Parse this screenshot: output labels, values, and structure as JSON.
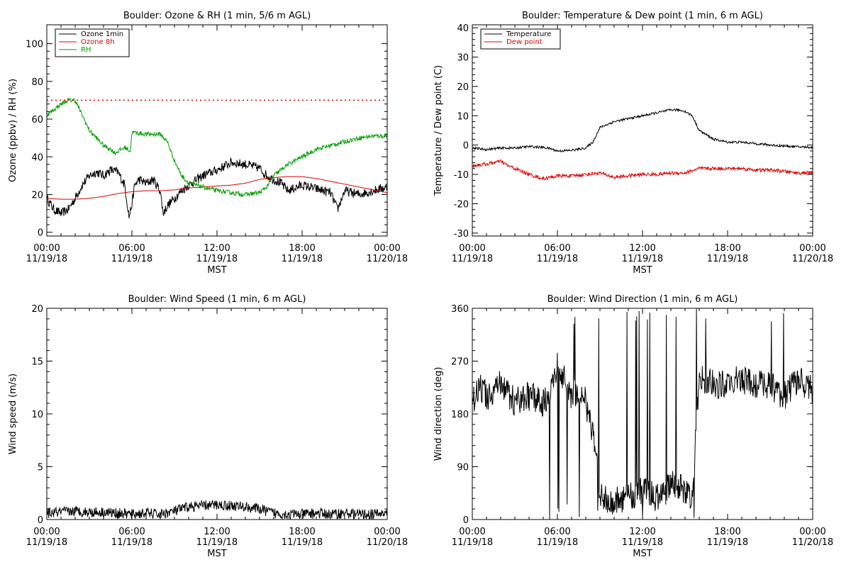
{
  "x_axis": {
    "ticks": [
      {
        "top": "00:00",
        "bottom": "11/19/18"
      },
      {
        "top": "06:00",
        "bottom": "11/19/18"
      },
      {
        "top": "12:00",
        "bottom": "11/19/18"
      },
      {
        "top": "18:00",
        "bottom": "11/19/18"
      },
      {
        "top": "00:00",
        "bottom": "11/20/18"
      }
    ],
    "label": "MST"
  },
  "chart_data": [
    {
      "type": "line",
      "title": "Boulder: Ozone & RH (1 min, 5/6 m AGL)",
      "ylabel": "Ozone (ppbv) / RH (%)",
      "xlabel": "MST",
      "x_range_hours": [
        0,
        24
      ],
      "ylim": [
        -2,
        110
      ],
      "yticks": [
        0,
        20,
        40,
        60,
        80,
        100
      ],
      "legend_position": "top-left",
      "reference_line": {
        "y": 70,
        "style": "dotted",
        "color": "#e00000"
      },
      "series": [
        {
          "name": "Ozone 1min",
          "color": "#000000",
          "noise": 2.5,
          "x": [
            0,
            0.5,
            1,
            1.5,
            2,
            2.5,
            3,
            3.5,
            4,
            4.5,
            5,
            5.5,
            5.8,
            6,
            6.2,
            6.5,
            7,
            7.5,
            8,
            8.2,
            8.5,
            9,
            9.5,
            10,
            11,
            12,
            13,
            14,
            14.5,
            15,
            15.5,
            16,
            16.5,
            17,
            18,
            19,
            20,
            20.5,
            21,
            22,
            23,
            24
          ],
          "y": [
            18,
            12,
            10,
            12,
            18,
            25,
            30,
            32,
            30,
            33,
            32,
            25,
            8,
            15,
            25,
            28,
            26,
            28,
            22,
            10,
            14,
            18,
            22,
            25,
            30,
            33,
            37,
            36,
            35,
            34,
            30,
            28,
            26,
            22,
            25,
            23,
            21,
            12,
            22,
            20,
            22,
            24
          ]
        },
        {
          "name": "Ozone 8h",
          "color": "#e00000",
          "noise": 0,
          "x": [
            0,
            1,
            2,
            3,
            4,
            5,
            6,
            7,
            8,
            9,
            10,
            11,
            12,
            13,
            14,
            15,
            16,
            17,
            18,
            19,
            20,
            21,
            22,
            23,
            24
          ],
          "y": [
            18,
            17.5,
            17.5,
            18,
            19,
            20.5,
            21.5,
            22,
            22,
            22.5,
            23.5,
            24,
            24.5,
            25,
            26,
            28,
            29,
            29.5,
            29.5,
            28.5,
            27,
            25.5,
            24,
            22.5,
            21
          ]
        },
        {
          "name": "RH",
          "color": "#00a000",
          "noise": 1.2,
          "x": [
            0,
            0.5,
            1,
            1.5,
            2,
            2.5,
            3,
            3.5,
            4,
            4.5,
            4.8,
            5.5,
            5.9,
            6,
            7,
            8,
            8.5,
            9,
            9.5,
            10,
            11,
            12,
            13,
            14,
            15,
            15.5,
            16,
            17,
            18,
            19,
            20,
            21,
            22,
            23,
            24
          ],
          "y": [
            62,
            65,
            68,
            70,
            70,
            62,
            54,
            50,
            46,
            44,
            42,
            45,
            43,
            53,
            52,
            52,
            48,
            38,
            30,
            26,
            24,
            22,
            21,
            20,
            21,
            24,
            30,
            36,
            40,
            44,
            46,
            48,
            50,
            51,
            51
          ]
        }
      ]
    },
    {
      "type": "line",
      "title": "Boulder: Temperature & Dew point (1 min, 6 m AGL)",
      "ylabel": "Temperature / Dew point (C)",
      "xlabel": "MST",
      "x_range_hours": [
        0,
        24
      ],
      "ylim": [
        -31,
        41
      ],
      "yticks": [
        -30,
        -20,
        -10,
        0,
        10,
        20,
        30,
        40
      ],
      "legend_position": "top-left",
      "series": [
        {
          "name": "Temperature",
          "color": "#000000",
          "noise": 0.4,
          "x": [
            0,
            1,
            2,
            3,
            4,
            5,
            5.5,
            6,
            7,
            8,
            8.5,
            9,
            10,
            11,
            12,
            13,
            14,
            14.5,
            15,
            15.5,
            16,
            17,
            18,
            19,
            20,
            21,
            22,
            23,
            24
          ],
          "y": [
            -1,
            -1.5,
            -1,
            -1,
            -0.5,
            -0.8,
            -1.2,
            -2,
            -1.8,
            -1,
            1,
            6,
            8,
            9,
            10,
            11,
            12,
            12,
            11.5,
            10,
            5,
            2,
            1,
            1,
            0.5,
            0,
            -0.3,
            -0.6,
            -0.8
          ]
        },
        {
          "name": "Dew point",
          "color": "#e00000",
          "noise": 0.6,
          "x": [
            0,
            1,
            2,
            2.5,
            3,
            4,
            5,
            6,
            7,
            8,
            9,
            10,
            11,
            12,
            13,
            14,
            15,
            16,
            17,
            18,
            19,
            20,
            21,
            22,
            23,
            24
          ],
          "y": [
            -7,
            -6.5,
            -5.5,
            -7,
            -8,
            -10,
            -11.5,
            -10.5,
            -10.5,
            -10,
            -9.5,
            -11,
            -10.5,
            -10,
            -10,
            -9.5,
            -9.5,
            -8,
            -8,
            -8,
            -8,
            -8.5,
            -8.5,
            -9,
            -9.5,
            -9.5
          ]
        }
      ]
    },
    {
      "type": "line",
      "title": "Boulder: Wind Speed (1 min, 6 m AGL)",
      "ylabel": "Wind speed (m/s)",
      "xlabel": "MST",
      "x_range_hours": [
        0,
        24
      ],
      "ylim": [
        0,
        20
      ],
      "yticks": [
        0,
        5,
        10,
        15,
        20
      ],
      "series": [
        {
          "name": "",
          "color": "#000000",
          "noise": 0.5,
          "floor": 0,
          "x": [
            0,
            1,
            2,
            3,
            4,
            5,
            6,
            7,
            8,
            9,
            10,
            11,
            12,
            13,
            14,
            15,
            15.5,
            16,
            17,
            18,
            19,
            20,
            21,
            22,
            23,
            24
          ],
          "y": [
            0.6,
            0.7,
            0.8,
            0.7,
            0.7,
            0.6,
            0.5,
            0.6,
            0.5,
            0.8,
            1.2,
            1.3,
            1.4,
            1.3,
            1.2,
            1.0,
            0.8,
            0.6,
            0.5,
            0.5,
            0.6,
            0.5,
            0.6,
            0.5,
            0.5,
            0.6
          ]
        }
      ]
    },
    {
      "type": "line",
      "title": "Boulder: Wind Direction (1 min, 6 m AGL)",
      "ylabel": "Wind direction (deg)",
      "xlabel": "MST",
      "x_range_hours": [
        0,
        24
      ],
      "ylim": [
        0,
        360
      ],
      "yticks": [
        0,
        90,
        180,
        270,
        360
      ],
      "series": [
        {
          "name": "",
          "color": "#000000",
          "noise": 25,
          "floor": 0,
          "ceil": 360,
          "spikes": true,
          "x": [
            0,
            0.5,
            1,
            2,
            3,
            4,
            5,
            5.5,
            6,
            6.5,
            7,
            7.5,
            8,
            8.5,
            9,
            10,
            11,
            12,
            13,
            14,
            15,
            15.5,
            16,
            17,
            18,
            19,
            20,
            21,
            22,
            23,
            24
          ],
          "y": [
            200,
            230,
            210,
            230,
            200,
            210,
            200,
            220,
            260,
            240,
            210,
            220,
            200,
            150,
            40,
            30,
            40,
            50,
            40,
            60,
            50,
            40,
            240,
            230,
            230,
            240,
            230,
            230,
            210,
            240,
            220
          ]
        }
      ]
    }
  ]
}
